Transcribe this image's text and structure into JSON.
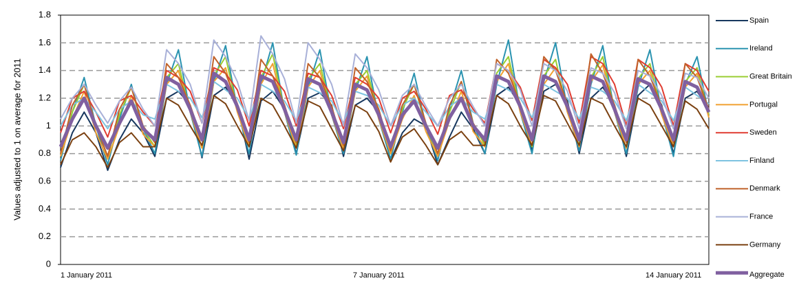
{
  "chart_data": {
    "type": "line",
    "y_label": "Values adjusted to 1 on average for 2011",
    "categories": [
      "1 January 2011",
      null,
      null,
      null,
      null,
      null,
      null,
      null,
      null,
      null,
      null,
      null,
      null,
      null,
      null,
      null,
      null,
      null,
      null,
      null,
      null,
      null,
      null,
      null,
      null,
      null,
      null,
      "7 January 2011",
      null,
      null,
      null,
      null,
      null,
      null,
      null,
      null,
      null,
      null,
      null,
      null,
      null,
      null,
      null,
      null,
      null,
      null,
      null,
      null,
      null,
      null,
      null,
      null,
      "14 January 2011",
      null,
      null,
      null
    ],
    "ylim": [
      0,
      1.8
    ],
    "yticks": [
      0,
      0.2,
      0.4,
      0.6,
      0.8,
      1,
      1.2,
      1.4,
      1.6,
      1.8
    ],
    "grid": true,
    "series": [
      {
        "name": "Spain",
        "color": "#17375e",
        "width": 2,
        "values": [
          0.7,
          0.95,
          1.1,
          0.95,
          0.68,
          0.9,
          1.05,
          0.95,
          0.78,
          1.2,
          1.25,
          1.15,
          0.77,
          1.22,
          1.28,
          1.15,
          0.76,
          1.18,
          1.25,
          1.12,
          0.8,
          1.2,
          1.24,
          1.15,
          0.78,
          1.15,
          1.2,
          1.1,
          0.75,
          0.95,
          1.05,
          1.0,
          0.72,
          0.92,
          1.1,
          0.98,
          0.8,
          1.22,
          1.28,
          1.15,
          0.82,
          1.25,
          1.3,
          1.18,
          0.8,
          1.2,
          1.28,
          1.15,
          0.78,
          1.22,
          1.3,
          1.15,
          0.8,
          1.2,
          1.25,
          1.12
        ]
      },
      {
        "name": "Ireland",
        "color": "#2a93b0",
        "width": 2,
        "values": [
          0.75,
          1.1,
          1.35,
          1.0,
          0.72,
          1.05,
          1.3,
          0.98,
          0.8,
          1.3,
          1.55,
          1.1,
          0.78,
          1.32,
          1.58,
          1.12,
          0.8,
          1.3,
          1.6,
          1.1,
          0.79,
          1.28,
          1.55,
          1.08,
          0.8,
          1.25,
          1.5,
          1.05,
          0.76,
          1.1,
          1.38,
          1.0,
          0.75,
          1.12,
          1.4,
          1.02,
          0.8,
          1.3,
          1.62,
          1.1,
          0.8,
          1.32,
          1.6,
          1.12,
          0.82,
          1.3,
          1.58,
          1.1,
          0.8,
          1.28,
          1.55,
          1.1,
          0.78,
          1.3,
          1.5,
          1.08
        ]
      },
      {
        "name": "Great  Britain",
        "color": "#9acd32",
        "width": 2,
        "values": [
          0.8,
          1.1,
          1.3,
          1.0,
          0.78,
          1.08,
          1.28,
          0.98,
          0.85,
          1.35,
          1.45,
          1.1,
          0.84,
          1.36,
          1.5,
          1.12,
          0.85,
          1.35,
          1.52,
          1.1,
          0.86,
          1.34,
          1.45,
          1.1,
          0.84,
          1.3,
          1.4,
          1.08,
          0.8,
          1.12,
          1.3,
          1.0,
          0.8,
          1.1,
          1.32,
          1.02,
          0.86,
          1.38,
          1.5,
          1.12,
          0.85,
          1.36,
          1.48,
          1.1,
          0.86,
          1.35,
          1.5,
          1.1,
          0.84,
          1.34,
          1.45,
          1.1,
          0.85,
          1.32,
          1.42,
          1.08
        ]
      },
      {
        "name": "Portugal",
        "color": "#f0a030",
        "width": 2,
        "values": [
          0.78,
          1.05,
          1.25,
          0.95,
          0.76,
          1.0,
          1.22,
          0.94,
          0.85,
          1.3,
          1.4,
          1.1,
          0.84,
          1.32,
          1.42,
          1.1,
          0.85,
          1.3,
          1.45,
          1.1,
          0.84,
          1.28,
          1.4,
          1.08,
          0.83,
          1.25,
          1.36,
          1.05,
          0.8,
          1.05,
          1.22,
          0.96,
          0.78,
          1.04,
          1.25,
          0.96,
          0.85,
          1.32,
          1.45,
          1.1,
          0.86,
          1.3,
          1.42,
          1.1,
          0.85,
          1.32,
          1.44,
          1.1,
          0.84,
          1.3,
          1.4,
          1.08,
          0.85,
          1.28,
          1.38,
          1.06
        ]
      },
      {
        "name": "Sweden",
        "color": "#e03c31",
        "width": 2,
        "values": [
          0.95,
          1.2,
          1.25,
          1.1,
          0.92,
          1.18,
          1.22,
          1.1,
          1.0,
          1.4,
          1.35,
          1.25,
          1.02,
          1.42,
          1.38,
          1.26,
          1.0,
          1.4,
          1.36,
          1.25,
          1.0,
          1.38,
          1.35,
          1.22,
          0.98,
          1.35,
          1.3,
          1.2,
          0.95,
          1.2,
          1.25,
          1.12,
          0.94,
          1.22,
          1.26,
          1.12,
          1.02,
          1.45,
          1.4,
          1.28,
          1.04,
          1.48,
          1.42,
          1.3,
          1.02,
          1.5,
          1.45,
          1.3,
          1.0,
          1.48,
          1.42,
          1.28,
          1.0,
          1.45,
          1.4,
          1.25
        ]
      },
      {
        "name": "Finland",
        "color": "#7dc3e0",
        "width": 2,
        "values": [
          1.0,
          1.15,
          1.2,
          1.1,
          0.98,
          1.12,
          1.18,
          1.08,
          1.05,
          1.3,
          1.25,
          1.2,
          1.06,
          1.32,
          1.26,
          1.2,
          1.05,
          1.3,
          1.25,
          1.18,
          1.04,
          1.28,
          1.24,
          1.18,
          1.02,
          1.25,
          1.22,
          1.15,
          1.0,
          1.15,
          1.2,
          1.1,
          1.0,
          1.14,
          1.2,
          1.1,
          1.05,
          1.3,
          1.26,
          1.2,
          1.06,
          1.3,
          1.25,
          1.2,
          1.05,
          1.28,
          1.25,
          1.18,
          1.04,
          1.3,
          1.24,
          1.18,
          1.04,
          1.28,
          1.22,
          1.16
        ]
      },
      {
        "name": "Denmark",
        "color": "#c0622a",
        "width": 2,
        "values": [
          0.8,
          1.15,
          1.3,
          1.0,
          0.78,
          1.12,
          1.28,
          1.0,
          0.88,
          1.45,
          1.35,
          1.15,
          0.9,
          1.5,
          1.38,
          1.16,
          0.88,
          1.48,
          1.36,
          1.15,
          0.88,
          1.45,
          1.35,
          1.14,
          0.86,
          1.42,
          1.32,
          1.12,
          0.82,
          1.15,
          1.3,
          1.02,
          0.8,
          1.15,
          1.32,
          1.02,
          0.88,
          1.48,
          1.38,
          1.16,
          0.9,
          1.5,
          1.4,
          1.16,
          0.9,
          1.52,
          1.38,
          1.15,
          0.88,
          1.48,
          1.36,
          1.14,
          0.88,
          1.45,
          1.35,
          1.12
        ]
      },
      {
        "name": "France",
        "color": "#a8b0d8",
        "width": 2,
        "values": [
          1.05,
          1.2,
          1.3,
          1.15,
          1.02,
          1.18,
          1.28,
          1.12,
          1.0,
          1.55,
          1.45,
          1.3,
          1.02,
          1.62,
          1.5,
          1.32,
          1.04,
          1.65,
          1.52,
          1.34,
          1.02,
          1.6,
          1.48,
          1.3,
          1.0,
          1.52,
          1.42,
          1.26,
          1.0,
          1.22,
          1.3,
          1.14,
          1.0,
          1.2,
          1.3,
          1.14,
          1.0,
          1.45,
          1.4,
          1.26,
          1.0,
          1.45,
          1.4,
          1.25,
          0.98,
          1.42,
          1.38,
          1.24,
          0.98,
          1.4,
          1.36,
          1.22,
          0.98,
          1.38,
          1.35,
          1.2
        ]
      },
      {
        "name": "Germany",
        "color": "#7a4010",
        "width": 2,
        "values": [
          0.72,
          0.9,
          0.95,
          0.85,
          0.7,
          0.88,
          0.95,
          0.85,
          0.85,
          1.2,
          1.15,
          1.0,
          0.86,
          1.22,
          1.16,
          1.0,
          0.85,
          1.2,
          1.15,
          1.0,
          0.84,
          1.18,
          1.14,
          0.98,
          0.82,
          1.15,
          1.1,
          0.96,
          0.74,
          0.92,
          0.98,
          0.86,
          0.72,
          0.9,
          0.96,
          0.86,
          0.86,
          1.22,
          1.16,
          1.0,
          0.86,
          1.22,
          1.18,
          1.02,
          0.86,
          1.2,
          1.16,
          1.0,
          0.85,
          1.2,
          1.15,
          1.0,
          0.85,
          1.18,
          1.12,
          0.98
        ]
      },
      {
        "name": "Aggregate",
        "color": "#8060a0",
        "width": 5,
        "values": [
          0.85,
          1.05,
          1.2,
          1.0,
          0.84,
          1.02,
          1.18,
          0.98,
          0.9,
          1.35,
          1.3,
          1.12,
          0.9,
          1.38,
          1.32,
          1.14,
          0.9,
          1.36,
          1.32,
          1.12,
          0.9,
          1.34,
          1.3,
          1.1,
          0.88,
          1.3,
          1.26,
          1.08,
          0.85,
          1.08,
          1.18,
          1.0,
          0.84,
          1.06,
          1.2,
          1.0,
          0.9,
          1.36,
          1.32,
          1.14,
          0.9,
          1.36,
          1.32,
          1.14,
          0.9,
          1.36,
          1.32,
          1.12,
          0.9,
          1.34,
          1.3,
          1.12,
          0.9,
          1.32,
          1.28,
          1.1
        ]
      }
    ]
  }
}
